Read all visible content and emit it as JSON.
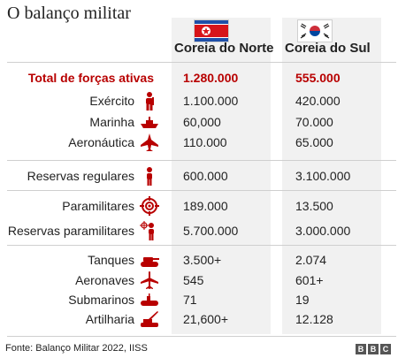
{
  "title": "O balanço militar",
  "columns": {
    "north": {
      "label": "Coreia do Norte",
      "flag_icon": "north-korea-flag-icon"
    },
    "south": {
      "label": "Coreia do Sul",
      "flag_icon": "south-korea-flag-icon"
    }
  },
  "colors": {
    "accent": "#b80000",
    "icon": "#b80000",
    "column_bg": "#f1f1f1",
    "divider": "#cfcfcf"
  },
  "chart_data": {
    "type": "table",
    "title": "O balanço militar",
    "columns": [
      "Coreia do Norte",
      "Coreia do Sul"
    ],
    "rows": [
      {
        "label": "Total de forças ativas",
        "icon": "",
        "north": "1.280.000",
        "south": "555.000",
        "highlight": true
      },
      {
        "label": "Exército",
        "icon": "soldier-icon",
        "north": "1.100.000",
        "south": "420.000"
      },
      {
        "label": "Marinha",
        "icon": "ship-icon",
        "north": "60,000",
        "south": "70.000"
      },
      {
        "label": "Aeronáutica",
        "icon": "fighter-jet-icon",
        "north": "110.000",
        "south": "65.000"
      },
      {
        "label": "Reservas regulares",
        "icon": "reservist-icon",
        "north": "600.000",
        "south": "3.100.000"
      },
      {
        "label": "Paramilitares",
        "icon": "target-icon",
        "north": "189.000",
        "south": "13.500"
      },
      {
        "label": "Reservas paramilitares",
        "icon": "paramilitary-reserve-icon",
        "north": "5.700.000",
        "south": "3.000.000"
      },
      {
        "label": "Tanques",
        "icon": "tank-icon",
        "north": "3.500+",
        "south": "2.074"
      },
      {
        "label": "Aeronaves",
        "icon": "aircraft-icon",
        "north": "545",
        "south": "601+"
      },
      {
        "label": "Submarinos",
        "icon": "submarine-icon",
        "north": "71",
        "south": "19"
      },
      {
        "label": "Artilharia",
        "icon": "artillery-icon",
        "north": "21,600+",
        "south": "12.128"
      }
    ]
  },
  "footer": {
    "source": "Fonte: Balanço Militar 2022, IISS",
    "logo_letters": [
      "B",
      "B",
      "C"
    ]
  }
}
